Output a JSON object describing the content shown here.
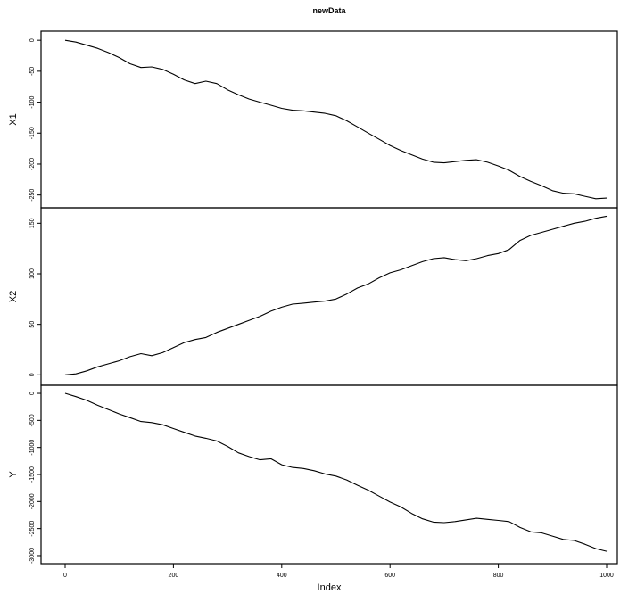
{
  "chart_data": {
    "type": "line",
    "title": "newData",
    "xlabel": "Index",
    "xlim": [
      0,
      1000
    ],
    "x_ticks": [
      0,
      200,
      400,
      600,
      800,
      1000
    ],
    "x_tick_labels": [
      "0",
      "200",
      "400",
      "600",
      "800",
      "1000"
    ],
    "grid": false,
    "panels": [
      {
        "ylabel": "X1",
        "ylim": [
          -262,
          6
        ],
        "y_ticks": [
          0,
          -50,
          -100,
          -150,
          -200,
          -250
        ],
        "y_tick_labels": [
          "0",
          "-50",
          "-100",
          "-150",
          "-200",
          "-250"
        ],
        "points": [
          [
            0,
            0
          ],
          [
            20,
            -3
          ],
          [
            40,
            -8
          ],
          [
            60,
            -13
          ],
          [
            80,
            -20
          ],
          [
            100,
            -28
          ],
          [
            120,
            -38
          ],
          [
            140,
            -44
          ],
          [
            160,
            -43
          ],
          [
            180,
            -47
          ],
          [
            200,
            -55
          ],
          [
            220,
            -64
          ],
          [
            240,
            -70
          ],
          [
            260,
            -66
          ],
          [
            280,
            -70
          ],
          [
            300,
            -80
          ],
          [
            320,
            -88
          ],
          [
            340,
            -95
          ],
          [
            360,
            -100
          ],
          [
            380,
            -105
          ],
          [
            400,
            -110
          ],
          [
            420,
            -113
          ],
          [
            440,
            -114
          ],
          [
            460,
            -116
          ],
          [
            480,
            -118
          ],
          [
            500,
            -122
          ],
          [
            520,
            -130
          ],
          [
            540,
            -140
          ],
          [
            560,
            -150
          ],
          [
            580,
            -160
          ],
          [
            600,
            -170
          ],
          [
            620,
            -178
          ],
          [
            640,
            -185
          ],
          [
            660,
            -192
          ],
          [
            680,
            -197
          ],
          [
            700,
            -198
          ],
          [
            720,
            -196
          ],
          [
            740,
            -194
          ],
          [
            760,
            -193
          ],
          [
            780,
            -197
          ],
          [
            800,
            -203
          ],
          [
            820,
            -210
          ],
          [
            840,
            -220
          ],
          [
            860,
            -228
          ],
          [
            880,
            -235
          ],
          [
            900,
            -243
          ],
          [
            920,
            -247
          ],
          [
            940,
            -248
          ],
          [
            960,
            -252
          ],
          [
            980,
            -256
          ],
          [
            1000,
            -255
          ]
        ]
      },
      {
        "ylabel": "X2",
        "ylim": [
          -5,
          160
        ],
        "y_ticks": [
          0,
          50,
          100,
          150
        ],
        "y_tick_labels": [
          "0",
          "50",
          "100",
          "150"
        ],
        "points": [
          [
            0,
            0
          ],
          [
            20,
            1
          ],
          [
            40,
            4
          ],
          [
            60,
            8
          ],
          [
            80,
            11
          ],
          [
            100,
            14
          ],
          [
            120,
            18
          ],
          [
            140,
            21
          ],
          [
            160,
            19
          ],
          [
            180,
            22
          ],
          [
            200,
            27
          ],
          [
            220,
            32
          ],
          [
            240,
            35
          ],
          [
            260,
            37
          ],
          [
            280,
            42
          ],
          [
            300,
            46
          ],
          [
            320,
            50
          ],
          [
            340,
            54
          ],
          [
            360,
            58
          ],
          [
            380,
            63
          ],
          [
            400,
            67
          ],
          [
            420,
            70
          ],
          [
            440,
            71
          ],
          [
            460,
            72
          ],
          [
            480,
            73
          ],
          [
            500,
            75
          ],
          [
            520,
            80
          ],
          [
            540,
            86
          ],
          [
            560,
            90
          ],
          [
            580,
            96
          ],
          [
            600,
            101
          ],
          [
            620,
            104
          ],
          [
            640,
            108
          ],
          [
            660,
            112
          ],
          [
            680,
            115
          ],
          [
            700,
            116
          ],
          [
            720,
            114
          ],
          [
            740,
            113
          ],
          [
            760,
            115
          ],
          [
            780,
            118
          ],
          [
            800,
            120
          ],
          [
            820,
            124
          ],
          [
            840,
            133
          ],
          [
            860,
            138
          ],
          [
            880,
            141
          ],
          [
            900,
            144
          ],
          [
            920,
            147
          ],
          [
            940,
            150
          ],
          [
            960,
            152
          ],
          [
            980,
            155
          ],
          [
            1000,
            157
          ]
        ]
      },
      {
        "ylabel": "Y",
        "ylim": [
          -3050,
          50
        ],
        "y_ticks": [
          0,
          -500,
          -1000,
          -1500,
          -2000,
          -2500,
          -3000
        ],
        "y_tick_labels": [
          "0",
          "-500",
          "-1000",
          "-1500",
          "-2000",
          "-2500",
          "-3000"
        ],
        "points": [
          [
            0,
            0
          ],
          [
            20,
            -60
          ],
          [
            40,
            -130
          ],
          [
            60,
            -220
          ],
          [
            80,
            -300
          ],
          [
            100,
            -380
          ],
          [
            120,
            -450
          ],
          [
            140,
            -520
          ],
          [
            160,
            -540
          ],
          [
            180,
            -580
          ],
          [
            200,
            -650
          ],
          [
            220,
            -720
          ],
          [
            240,
            -790
          ],
          [
            260,
            -830
          ],
          [
            280,
            -880
          ],
          [
            300,
            -980
          ],
          [
            320,
            -1100
          ],
          [
            340,
            -1170
          ],
          [
            360,
            -1230
          ],
          [
            380,
            -1210
          ],
          [
            400,
            -1320
          ],
          [
            420,
            -1370
          ],
          [
            440,
            -1390
          ],
          [
            460,
            -1430
          ],
          [
            480,
            -1490
          ],
          [
            500,
            -1530
          ],
          [
            520,
            -1600
          ],
          [
            540,
            -1700
          ],
          [
            560,
            -1790
          ],
          [
            580,
            -1900
          ],
          [
            600,
            -2010
          ],
          [
            620,
            -2100
          ],
          [
            640,
            -2220
          ],
          [
            660,
            -2320
          ],
          [
            680,
            -2380
          ],
          [
            700,
            -2390
          ],
          [
            720,
            -2370
          ],
          [
            740,
            -2340
          ],
          [
            760,
            -2310
          ],
          [
            780,
            -2330
          ],
          [
            800,
            -2350
          ],
          [
            820,
            -2370
          ],
          [
            840,
            -2480
          ],
          [
            860,
            -2560
          ],
          [
            880,
            -2580
          ],
          [
            900,
            -2640
          ],
          [
            920,
            -2700
          ],
          [
            940,
            -2720
          ],
          [
            960,
            -2790
          ],
          [
            980,
            -2870
          ],
          [
            1000,
            -2920
          ]
        ]
      }
    ]
  }
}
